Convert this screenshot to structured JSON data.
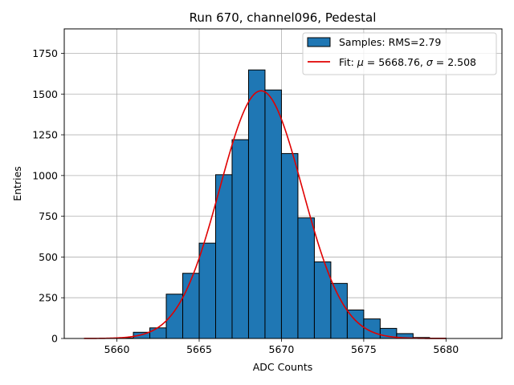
{
  "chart_data": {
    "type": "bar",
    "title": "Run 670, channel096, Pedestal",
    "xlabel": "ADC Counts",
    "ylabel": "Entries",
    "xlim": [
      5656.8,
      5683.4
    ],
    "ylim": [
      0,
      1900
    ],
    "xticks": [
      5660,
      5665,
      5670,
      5675,
      5680
    ],
    "yticks": [
      0,
      250,
      500,
      750,
      1000,
      1250,
      1500,
      1750
    ],
    "grid": true,
    "legend_position": "top-right",
    "histogram": {
      "name": "Samples: RMS=2.79",
      "color": "#1f77b4",
      "bin_edges": [
        5660,
        5661,
        5662,
        5663,
        5664,
        5665,
        5666,
        5667,
        5668,
        5669,
        5670,
        5671,
        5672,
        5673,
        5674,
        5675,
        5676,
        5677,
        5678,
        5679,
        5680
      ],
      "counts": [
        3,
        38,
        65,
        272,
        400,
        585,
        1005,
        1220,
        1648,
        1525,
        1135,
        740,
        470,
        338,
        175,
        120,
        62,
        30,
        6,
        2
      ]
    },
    "fit": {
      "name_prefix": "Fit: ",
      "name_mu": "μ",
      "name_mid": " = 5668.76, ",
      "name_sigma": "σ",
      "name_suffix": " = 2.508",
      "color": "#e00000",
      "mu": 5668.76,
      "sigma": 2.508,
      "amplitude": 1520,
      "x_range": [
        5658,
        5680
      ]
    }
  }
}
